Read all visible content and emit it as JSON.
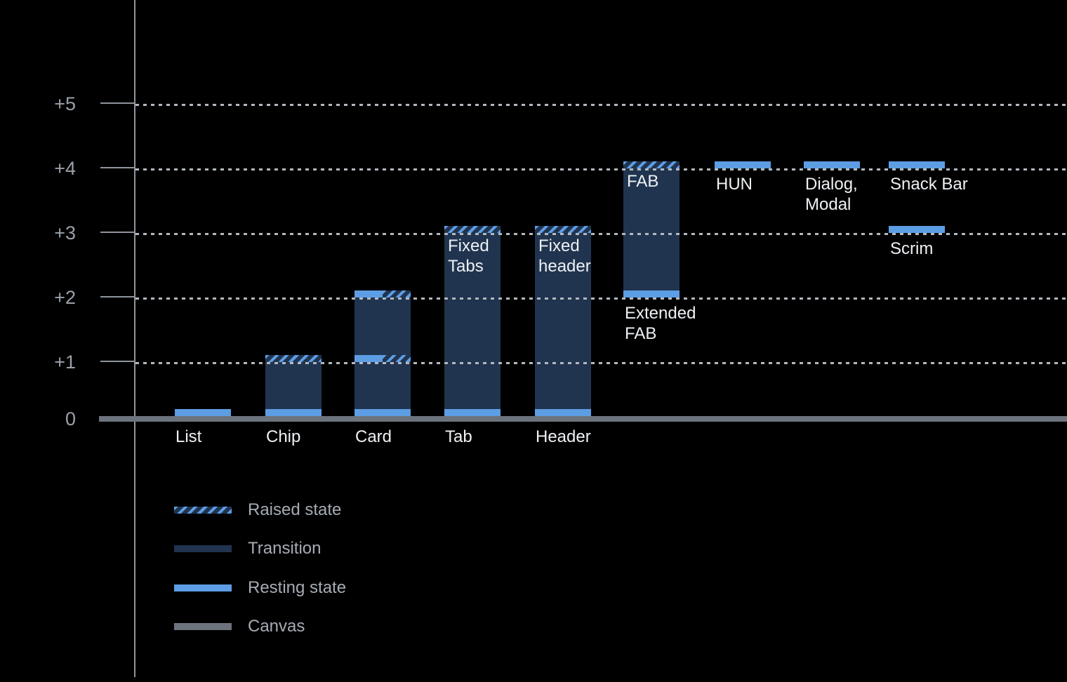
{
  "chart_data": {
    "type": "bar",
    "title": "",
    "xlabel": "",
    "ylabel": "",
    "ylim": [
      0,
      5
    ],
    "grid": "dotted horizontal",
    "legend_position": "bottom-left",
    "yticks": [
      {
        "label": "+5",
        "value": 5
      },
      {
        "label": "+4",
        "value": 4
      },
      {
        "label": "+3",
        "value": 3
      },
      {
        "label": "+2",
        "value": 2
      },
      {
        "label": "+1",
        "value": 1
      },
      {
        "label": "0",
        "value": 0
      }
    ],
    "legend": [
      {
        "label": "Raised state",
        "style": "raised"
      },
      {
        "label": "Transition",
        "style": "transition"
      },
      {
        "label": "Resting state",
        "style": "resting"
      },
      {
        "label": "Canvas",
        "style": "canvas"
      }
    ],
    "bars": [
      {
        "name": "list",
        "column": 0,
        "labels": [
          {
            "text": "List",
            "pos": "below-axis"
          }
        ],
        "segments": [
          {
            "type": "resting",
            "at": 0
          }
        ]
      },
      {
        "name": "chip",
        "column": 1,
        "labels": [
          {
            "text": "Chip",
            "pos": "below-axis"
          }
        ],
        "segments": [
          {
            "type": "transition",
            "from": 0,
            "to": 1
          },
          {
            "type": "resting",
            "at": 0
          },
          {
            "type": "raised",
            "at": 1
          }
        ]
      },
      {
        "name": "card",
        "column": 2,
        "labels": [
          {
            "text": "Card",
            "pos": "below-axis"
          }
        ],
        "segments": [
          {
            "type": "transition",
            "from": 0,
            "to": 2
          },
          {
            "type": "resting",
            "at": 0
          },
          {
            "type": "split",
            "at": 1
          },
          {
            "type": "split",
            "at": 2
          }
        ]
      },
      {
        "name": "tab",
        "column": 3,
        "labels": [
          {
            "text": "Tab",
            "pos": "below-axis"
          },
          {
            "text": "Fixed\nTabs",
            "pos": "inside-top",
            "at": 3
          }
        ],
        "segments": [
          {
            "type": "transition",
            "from": 0,
            "to": 3
          },
          {
            "type": "resting",
            "at": 0
          },
          {
            "type": "raised",
            "at": 3
          }
        ]
      },
      {
        "name": "header",
        "column": 4,
        "labels": [
          {
            "text": "Header",
            "pos": "below-axis"
          },
          {
            "text": "Fixed\nheader",
            "pos": "inside-top",
            "at": 3
          }
        ],
        "segments": [
          {
            "type": "transition",
            "from": 0,
            "to": 3
          },
          {
            "type": "resting",
            "at": 0
          },
          {
            "type": "raised",
            "at": 3
          }
        ]
      },
      {
        "name": "fab",
        "column": 5,
        "labels": [
          {
            "text": "FAB",
            "pos": "inside-top",
            "at": 4
          },
          {
            "text": "Extended\nFAB",
            "pos": "below-band",
            "at": 2
          }
        ],
        "segments": [
          {
            "type": "transition",
            "from": 2,
            "to": 4
          },
          {
            "type": "resting",
            "at": 2
          },
          {
            "type": "raised",
            "at": 4
          }
        ]
      },
      {
        "name": "hun",
        "column": 6,
        "labels": [
          {
            "text": "HUN",
            "pos": "below-band",
            "at": 4
          }
        ],
        "segments": [
          {
            "type": "resting",
            "at": 4
          }
        ]
      },
      {
        "name": "dialog-modal",
        "column": 7,
        "labels": [
          {
            "text": "Dialog,\nModal",
            "pos": "below-band",
            "at": 4
          }
        ],
        "segments": [
          {
            "type": "resting",
            "at": 4
          }
        ]
      },
      {
        "name": "snack-bar",
        "column": 8,
        "labels": [
          {
            "text": "Snack Bar",
            "pos": "below-band",
            "at": 4
          }
        ],
        "segments": [
          {
            "type": "resting",
            "at": 4
          }
        ]
      },
      {
        "name": "scrim",
        "column": 8,
        "labels": [
          {
            "text": "Scrim",
            "pos": "below-band",
            "at": 3
          }
        ],
        "segments": [
          {
            "type": "resting",
            "at": 3
          }
        ]
      }
    ]
  },
  "colors": {
    "background": "#000000",
    "resting": "#5d9de4",
    "transition": "#20344f",
    "canvas": "#6c737c",
    "axis": "#8f959d",
    "gridline": "#b3b8be",
    "axis_label": "#9aa1a9",
    "bar_label": "#eef1f4",
    "legend_label": "#a6acb4"
  }
}
